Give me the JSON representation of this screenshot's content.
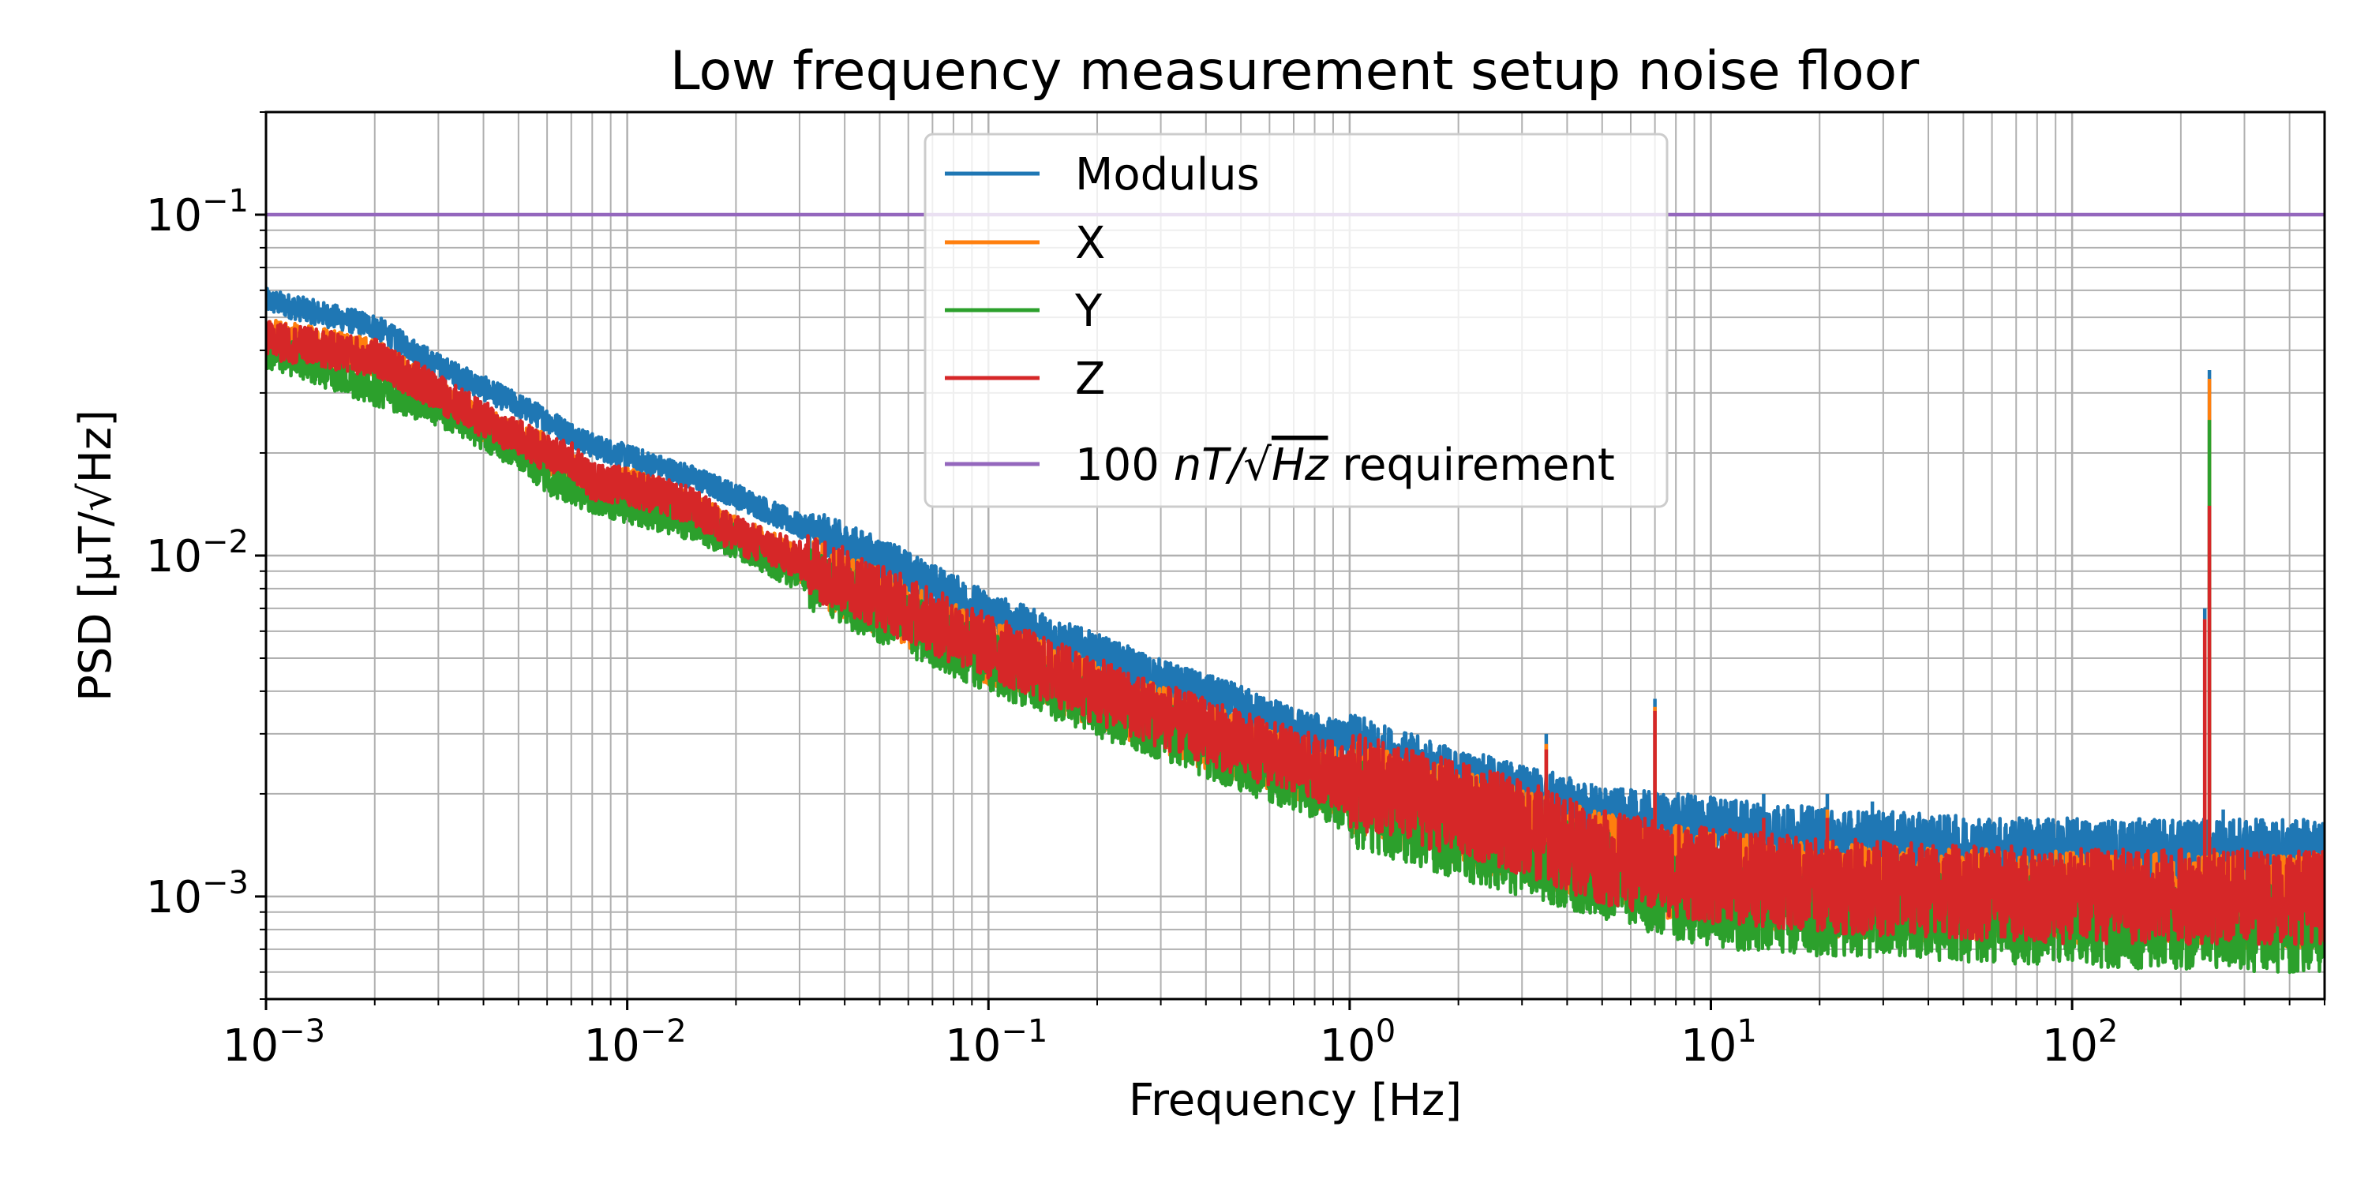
{
  "chart_data": {
    "type": "line",
    "title": "Low frequency measurement setup noise floor",
    "xlabel": "Frequency [Hz]",
    "ylabel": "PSD [μT/√Hz]",
    "xscale": "log",
    "yscale": "log",
    "xlim": [
      0.001,
      500
    ],
    "ylim": [
      0.0005,
      0.2
    ],
    "grid": true,
    "grid_which": "both",
    "legend_loc": "upper-center",
    "x_ticks": [
      {
        "base": "10",
        "exp": "−3",
        "value": 0.001
      },
      {
        "base": "10",
        "exp": "−2",
        "value": 0.01
      },
      {
        "base": "10",
        "exp": "−1",
        "value": 0.1
      },
      {
        "base": "10",
        "exp": "0",
        "value": 1
      },
      {
        "base": "10",
        "exp": "1",
        "value": 10
      },
      {
        "base": "10",
        "exp": "2",
        "value": 100
      }
    ],
    "y_ticks": [
      {
        "base": "10",
        "exp": "−1",
        "value": 0.1
      },
      {
        "base": "10",
        "exp": "−2",
        "value": 0.01
      },
      {
        "base": "10",
        "exp": "−3",
        "value": 0.001
      }
    ],
    "series": [
      {
        "name": "Modulus",
        "color": "#1f77b4",
        "noise": 0.09,
        "points": [
          [
            0.001,
            0.056
          ],
          [
            0.002,
            0.047
          ],
          [
            0.003,
            0.036
          ],
          [
            0.004,
            0.031
          ],
          [
            0.006,
            0.025
          ],
          [
            0.008,
            0.021
          ],
          [
            0.01,
            0.0195
          ],
          [
            0.015,
            0.017
          ],
          [
            0.02,
            0.015
          ],
          [
            0.03,
            0.0122
          ],
          [
            0.05,
            0.0098
          ],
          [
            0.07,
            0.0082
          ],
          [
            0.1,
            0.0068
          ],
          [
            0.2,
            0.0051
          ],
          [
            0.3,
            0.0043
          ],
          [
            0.5,
            0.0036
          ],
          [
            0.7,
            0.0031
          ],
          [
            1,
            0.0028
          ],
          [
            2,
            0.0022
          ],
          [
            3,
            0.002
          ],
          [
            5,
            0.0017
          ],
          [
            7,
            0.00165
          ],
          [
            10,
            0.0016
          ],
          [
            20,
            0.00148
          ],
          [
            50,
            0.0014
          ],
          [
            100,
            0.00138
          ],
          [
            200,
            0.00137
          ],
          [
            500,
            0.00137
          ]
        ],
        "spikes": [
          [
            3.5,
            0.003
          ],
          [
            4.67,
            0.00215
          ],
          [
            7,
            0.0038
          ],
          [
            14,
            0.002
          ],
          [
            21,
            0.002
          ],
          [
            28,
            0.0019
          ],
          [
            233,
            0.007
          ],
          [
            240,
            0.035
          ],
          [
            262,
            0.0018
          ]
        ]
      },
      {
        "name": "X",
        "color": "#ff7f0e",
        "noise": 0.14,
        "points": [
          [
            0.001,
            0.044
          ],
          [
            0.002,
            0.038
          ],
          [
            0.003,
            0.029
          ],
          [
            0.004,
            0.024
          ],
          [
            0.006,
            0.02
          ],
          [
            0.008,
            0.016
          ],
          [
            0.01,
            0.016
          ],
          [
            0.015,
            0.0135
          ],
          [
            0.02,
            0.0115
          ],
          [
            0.03,
            0.0095
          ],
          [
            0.05,
            0.0073
          ],
          [
            0.07,
            0.0062
          ],
          [
            0.1,
            0.0052
          ],
          [
            0.2,
            0.0039
          ],
          [
            0.3,
            0.0033
          ],
          [
            0.5,
            0.0027
          ],
          [
            0.7,
            0.0024
          ],
          [
            1,
            0.0021
          ],
          [
            2,
            0.0017
          ],
          [
            3,
            0.0015
          ],
          [
            5,
            0.00128
          ],
          [
            7,
            0.0012
          ],
          [
            10,
            0.00113
          ],
          [
            20,
            0.00105
          ],
          [
            50,
            0.001
          ],
          [
            100,
            0.00098
          ],
          [
            200,
            0.00097
          ],
          [
            500,
            0.00097
          ]
        ],
        "spikes": [
          [
            3.5,
            0.0028
          ],
          [
            7,
            0.0036
          ],
          [
            21,
            0.0018
          ],
          [
            233,
            0.0065
          ],
          [
            240,
            0.033
          ]
        ]
      },
      {
        "name": "Y",
        "color": "#2ca02c",
        "noise": 0.13,
        "points": [
          [
            0.001,
            0.04
          ],
          [
            0.002,
            0.031
          ],
          [
            0.003,
            0.027
          ],
          [
            0.004,
            0.023
          ],
          [
            0.005,
            0.02
          ],
          [
            0.006,
            0.017
          ],
          [
            0.008,
            0.015
          ],
          [
            0.01,
            0.014
          ],
          [
            0.015,
            0.0125
          ],
          [
            0.02,
            0.011
          ],
          [
            0.03,
            0.0088
          ],
          [
            0.05,
            0.0068
          ],
          [
            0.07,
            0.0058
          ],
          [
            0.1,
            0.0049
          ],
          [
            0.2,
            0.0036
          ],
          [
            0.3,
            0.0031
          ],
          [
            0.5,
            0.0025
          ],
          [
            0.7,
            0.0022
          ],
          [
            1,
            0.0019
          ],
          [
            2,
            0.0015
          ],
          [
            3,
            0.00135
          ],
          [
            5,
            0.00115
          ],
          [
            7,
            0.00105
          ],
          [
            10,
            0.00095
          ],
          [
            20,
            0.0009
          ],
          [
            50,
            0.00086
          ],
          [
            100,
            0.00084
          ],
          [
            200,
            0.00082
          ],
          [
            500,
            0.0008
          ]
        ],
        "spikes": [
          [
            240,
            0.025
          ]
        ]
      },
      {
        "name": "Z",
        "color": "#d62728",
        "noise": 0.14,
        "points": [
          [
            0.001,
            0.043
          ],
          [
            0.002,
            0.038
          ],
          [
            0.003,
            0.03
          ],
          [
            0.004,
            0.025
          ],
          [
            0.006,
            0.02
          ],
          [
            0.007,
            0.019
          ],
          [
            0.008,
            0.0165
          ],
          [
            0.01,
            0.016
          ],
          [
            0.015,
            0.014
          ],
          [
            0.02,
            0.0115
          ],
          [
            0.03,
            0.0097
          ],
          [
            0.05,
            0.0076
          ],
          [
            0.07,
            0.0064
          ],
          [
            0.1,
            0.0054
          ],
          [
            0.2,
            0.004
          ],
          [
            0.3,
            0.0034
          ],
          [
            0.5,
            0.0028
          ],
          [
            0.7,
            0.0025
          ],
          [
            1,
            0.0022
          ],
          [
            2,
            0.0018
          ],
          [
            3,
            0.0016
          ],
          [
            5,
            0.0013
          ],
          [
            7,
            0.00122
          ],
          [
            10,
            0.00115
          ],
          [
            20,
            0.00108
          ],
          [
            50,
            0.00103
          ],
          [
            100,
            0.001
          ],
          [
            200,
            0.001
          ],
          [
            500,
            0.001
          ]
        ],
        "spikes": [
          [
            3.5,
            0.0027
          ],
          [
            7,
            0.0035
          ],
          [
            14,
            0.0017
          ],
          [
            21,
            0.0017
          ],
          [
            233,
            0.0065
          ],
          [
            240,
            0.014
          ]
        ]
      },
      {
        "name": "100 nT/√Hz requirement",
        "legend_prefix": "100 ",
        "legend_math": "nT/√",
        "legend_math2": "Hz",
        "legend_suffix": " requirement",
        "color": "#9467bd",
        "noise": 0,
        "points": [
          [
            0.001,
            0.1
          ],
          [
            500,
            0.1
          ]
        ],
        "spikes": []
      }
    ]
  }
}
